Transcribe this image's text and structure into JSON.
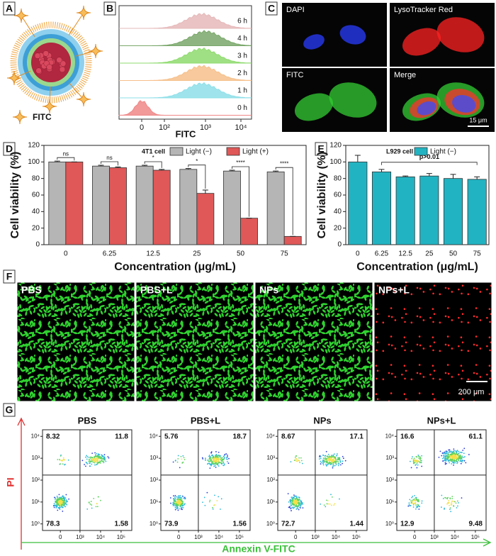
{
  "panels": {
    "A": {
      "letter": "A",
      "legend": "FITC"
    },
    "B": {
      "letter": "B",
      "times": [
        "6 h",
        "4 h",
        "3 h",
        "2 h",
        "1 h",
        "0 h"
      ],
      "xlabel": "FITC",
      "xtick_labels": [
        "0",
        "10²",
        "10³",
        "10⁴"
      ]
    },
    "C": {
      "letter": "C",
      "channels": [
        "DAPI",
        "LysoTracker Red",
        "FITC",
        "Merge"
      ],
      "scale_bar": "15 μm"
    },
    "D": {
      "letter": "D"
    },
    "E": {
      "letter": "E"
    },
    "F": {
      "letter": "F",
      "groups": [
        "PBS",
        "PBS+L",
        "NPs",
        "NPs+L"
      ],
      "scale_bar": "200 μm"
    },
    "G": {
      "letter": "G",
      "xlabel": "Annexin V-FITC",
      "ylabel": "PI",
      "ytick_labels": [
        "10⁰",
        "10¹",
        "10²",
        "10³",
        "10⁴"
      ],
      "xtick_labels": [
        "0",
        "10³",
        "10⁴",
        "10⁵"
      ],
      "plots": [
        {
          "title": "PBS",
          "quadrants": [
            8.32,
            11.8,
            78.3,
            1.58
          ]
        },
        {
          "title": "PBS+L",
          "quadrants": [
            5.76,
            18.7,
            73.9,
            1.56
          ]
        },
        {
          "title": "NPs",
          "quadrants": [
            8.67,
            17.1,
            72.7,
            1.44
          ]
        },
        {
          "title": "NPs+L",
          "quadrants": [
            16.6,
            61.1,
            12.9,
            9.48
          ]
        }
      ]
    }
  },
  "chart_data": [
    {
      "type": "bar",
      "categories": [
        "0",
        "6.25",
        "12.5",
        "25",
        "50",
        "75"
      ],
      "xlabel": "Concentration (μg/mL)",
      "ylabel": "Cell viability (%)",
      "legend_title": "4T1 cell",
      "series": [
        {
          "name": "Light (−)",
          "color": "#b5b5b5",
          "values": [
            100,
            95,
            95,
            91,
            89,
            88
          ],
          "errors": [
            1,
            1,
            1,
            1,
            1,
            1
          ]
        },
        {
          "name": "Light (+)",
          "color": "#e05858",
          "values": [
            100,
            93,
            90,
            62,
            32,
            10
          ],
          "errors": [
            0,
            1,
            1,
            4,
            0,
            0
          ]
        }
      ],
      "significance": [
        "ns",
        "ns",
        "*",
        "*",
        "****",
        "****"
      ],
      "ylim": [
        0,
        120
      ],
      "yticks": [
        0,
        20,
        40,
        60,
        80,
        100,
        120
      ]
    },
    {
      "type": "bar",
      "categories": [
        "0",
        "6.25",
        "12.5",
        "25",
        "50",
        "75"
      ],
      "xlabel": "Concentration (μg/mL)",
      "ylabel": "Cell viability (%)",
      "legend_title": "L929 cell",
      "series": [
        {
          "name": "Light (−)",
          "color": "#22b3c2",
          "values": [
            100,
            88,
            82,
            83,
            80,
            79
          ],
          "errors": [
            8,
            3,
            1,
            3,
            5,
            3
          ]
        }
      ],
      "annotation": "p>0.01",
      "ylim": [
        0,
        120
      ],
      "yticks": [
        0,
        20,
        40,
        60,
        80,
        100,
        120
      ]
    }
  ]
}
